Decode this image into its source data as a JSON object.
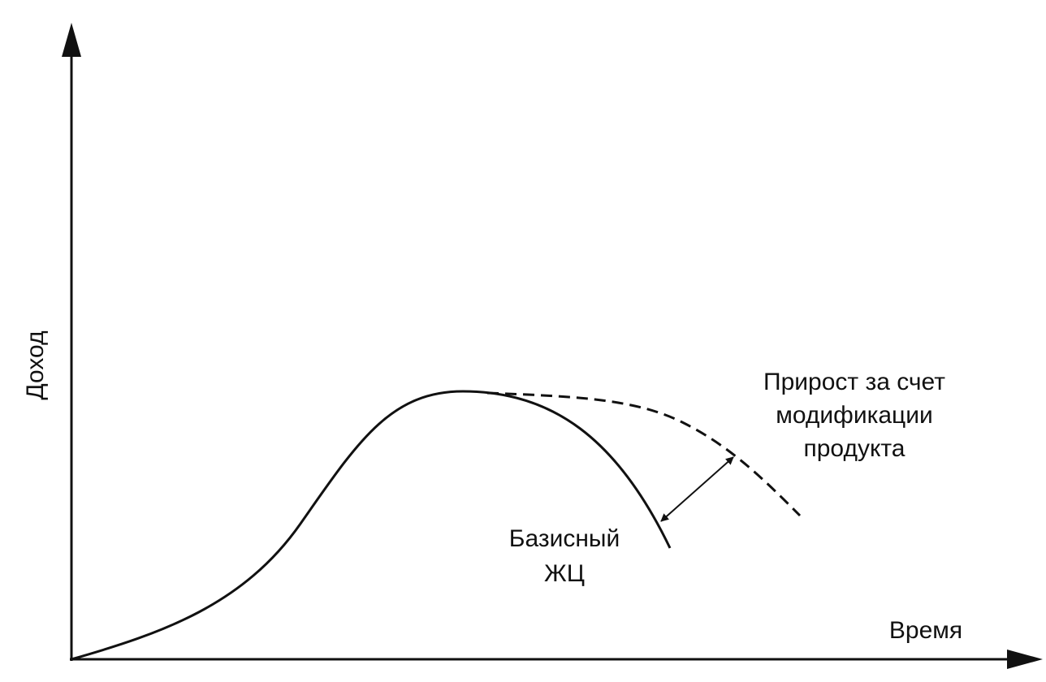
{
  "axes": {
    "y_label": "Доход",
    "x_label": "Время"
  },
  "annotations": {
    "modification": [
      "Прирост за счет",
      "модификации",
      "продукта"
    ],
    "basic": [
      "Базисный",
      "ЖЦ"
    ]
  }
}
